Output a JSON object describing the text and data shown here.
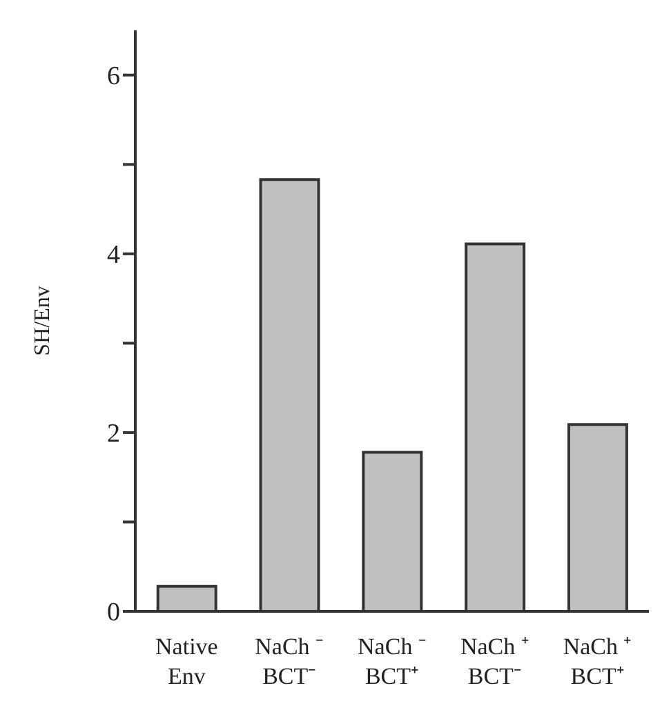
{
  "chart_data": {
    "type": "bar",
    "ylabel": "SH/Env",
    "categories": [
      "Native\nEnv",
      "NaCh ⁻\nBCT⁻",
      "NaCh ⁻\nBCT⁺",
      "NaCh ⁺\nBCT⁻",
      "NaCh ⁺\nBCT⁺"
    ],
    "values": [
      0.28,
      4.83,
      1.78,
      4.11,
      2.09
    ],
    "color": "#c0c0c0",
    "ylim": [
      0,
      6.5
    ],
    "yticks": [
      0,
      {
        "value": 1,
        "label": null
      },
      2,
      {
        "value": 3,
        "label": null
      },
      4,
      {
        "value": 5,
        "label": null
      },
      6
    ],
    "grid": false,
    "legend": false
  }
}
